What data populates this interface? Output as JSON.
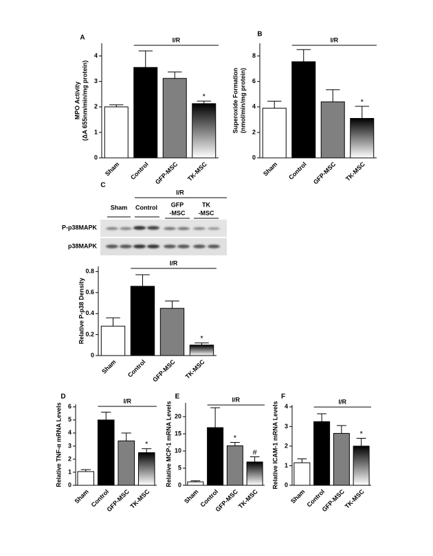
{
  "chart_data": [
    {
      "type": "bar",
      "panel": "A",
      "y_label": [
        "MPO Activity",
        "(ΔA 655nm/min/mg protein)"
      ],
      "categories": [
        "Sham",
        "Control",
        "GFP-MSC",
        "TK-MSC"
      ],
      "values": [
        2.0,
        3.55,
        3.12,
        2.13
      ],
      "errors": [
        0.08,
        0.65,
        0.25,
        0.1
      ],
      "colors": [
        "#ffffff",
        "#000000",
        "#808080",
        [
          "#000000",
          "#ffffff"
        ]
      ],
      "ylim": [
        0,
        4.5
      ],
      "yticks": [
        0,
        1,
        2,
        3,
        4
      ],
      "bracket": {
        "label": "I/R",
        "from": 1,
        "to": 3
      },
      "annotations": [
        {
          "text": "*",
          "category": 3
        }
      ]
    },
    {
      "type": "bar",
      "panel": "B",
      "y_label": [
        "Superoxide Formation",
        "(nmol/min/mg protein)"
      ],
      "categories": [
        "Sham",
        "Control",
        "GFP-MSC",
        "TK-MSC"
      ],
      "values": [
        3.9,
        7.55,
        4.4,
        3.1
      ],
      "errors": [
        0.55,
        0.95,
        0.95,
        0.95
      ],
      "colors": [
        "#ffffff",
        "#000000",
        "#808080",
        [
          "#000000",
          "#ffffff"
        ]
      ],
      "ylim": [
        0,
        9
      ],
      "yticks": [
        0,
        2,
        4,
        6,
        8
      ],
      "bracket": {
        "label": "I/R",
        "from": 1,
        "to": 3
      },
      "annotations": [
        {
          "text": "*",
          "category": 3
        }
      ]
    },
    {
      "type": "bar",
      "panel": "C",
      "y_label": [
        "Relative P-p38 Density"
      ],
      "categories": [
        "Sham",
        "Control",
        "GFP-MSC",
        "TK-MSC"
      ],
      "values": [
        0.28,
        0.66,
        0.45,
        0.1
      ],
      "errors": [
        0.08,
        0.11,
        0.07,
        0.02
      ],
      "colors": [
        "#ffffff",
        "#000000",
        "#808080",
        [
          "#000000",
          "#ffffff"
        ]
      ],
      "ylim": [
        0,
        0.85
      ],
      "yticks": [
        0,
        0.2,
        0.4,
        0.6,
        0.8
      ],
      "bracket": {
        "label": "I/R",
        "from": 1,
        "to": 3
      },
      "annotations": [
        {
          "text": "*",
          "category": 3
        }
      ]
    },
    {
      "type": "bar",
      "panel": "D",
      "y_label": [
        "Relative TNF-α mRNA Levels"
      ],
      "categories": [
        "Sham",
        "Control",
        "GFP-MSC",
        "TK-MSC"
      ],
      "values": [
        1.05,
        5.0,
        3.4,
        2.5
      ],
      "errors": [
        0.15,
        0.6,
        0.6,
        0.3
      ],
      "colors": [
        "#ffffff",
        "#000000",
        "#808080",
        [
          "#000000",
          "#ffffff"
        ]
      ],
      "ylim": [
        0,
        6.2
      ],
      "yticks": [
        0,
        1,
        2,
        3,
        4,
        5,
        6
      ],
      "bracket": {
        "label": "I/R",
        "from": 1,
        "to": 3
      },
      "annotations": [
        {
          "text": "*",
          "category": 3
        }
      ]
    },
    {
      "type": "bar",
      "panel": "E",
      "y_label": [
        "Relative MCP-1 mRNA Levels"
      ],
      "categories": [
        "Sham",
        "Control",
        "GFP-MSC",
        "TK-MSC"
      ],
      "values": [
        1.0,
        16.8,
        11.5,
        6.8
      ],
      "errors": [
        0.3,
        5.8,
        1.0,
        1.5
      ],
      "colors": [
        "#ffffff",
        "#000000",
        "#808080",
        [
          "#000000",
          "#ffffff"
        ]
      ],
      "ylim": [
        0,
        24
      ],
      "yticks": [
        0,
        5,
        10,
        15,
        20
      ],
      "bracket": {
        "label": "I/R",
        "from": 1,
        "to": 3
      },
      "annotations": [
        {
          "text": "*",
          "category": 2
        },
        {
          "text": "#",
          "category": 3
        }
      ]
    },
    {
      "type": "bar",
      "panel": "F",
      "y_label": [
        "Relative ICAM-1 mRNA Levels"
      ],
      "categories": [
        "Sham",
        "Control",
        "GFP-MSC",
        "TK-MSC"
      ],
      "values": [
        1.15,
        3.25,
        2.65,
        2.0
      ],
      "errors": [
        0.2,
        0.4,
        0.4,
        0.4
      ],
      "colors": [
        "#ffffff",
        "#000000",
        "#808080",
        [
          "#000000",
          "#ffffff"
        ]
      ],
      "ylim": [
        0,
        4.1
      ],
      "yticks": [
        0,
        1,
        2,
        3,
        4
      ],
      "bracket": {
        "label": "I/R",
        "from": 1,
        "to": 3
      },
      "annotations": [
        {
          "text": "*",
          "category": 3
        }
      ]
    }
  ],
  "western_blot": {
    "bracket": "I/R",
    "lanes": [
      [
        "Sham"
      ],
      [
        "Control"
      ],
      [
        "GFP",
        "-MSC"
      ],
      [
        "TK",
        "-MSC"
      ]
    ],
    "rows": [
      "P-p38MAPK",
      "p38MAPK"
    ]
  }
}
